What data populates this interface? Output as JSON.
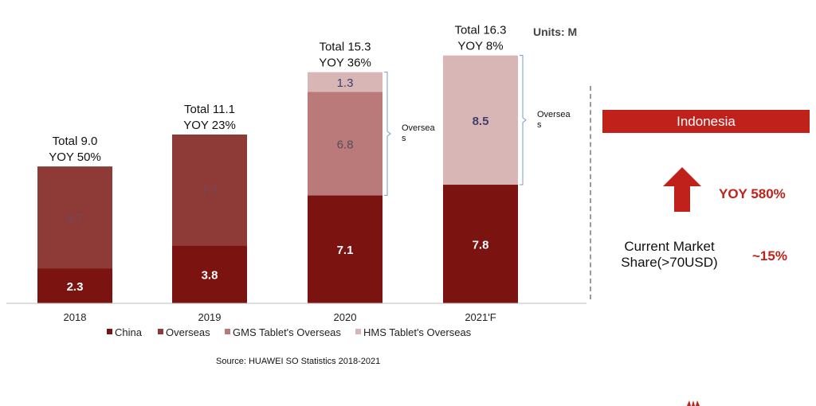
{
  "units": "Units: M",
  "source": "Source: HUAWEI SO Statistics 2018-2021",
  "colors": {
    "china": "#7b1410",
    "overseas": "#8e3a37",
    "gms": "#b97a79",
    "hms": "#d8b6b6",
    "accent": "#c0221b"
  },
  "chart_data": {
    "type": "bar",
    "stacked": true,
    "categories": [
      "2018",
      "2019",
      "2020",
      "2021'F"
    ],
    "series": [
      {
        "name": "China",
        "values": [
          2.3,
          3.8,
          7.1,
          7.8
        ],
        "labels": [
          "2.3",
          "3.8",
          "7.1",
          "7.8"
        ]
      },
      {
        "name": "Overseas",
        "values": [
          6.7,
          7.3,
          0,
          0
        ],
        "labels": [
          "6.7",
          "7.3",
          "",
          ""
        ]
      },
      {
        "name": "GMS Tablet's Overseas",
        "values": [
          0,
          0,
          6.8,
          0
        ],
        "labels": [
          "",
          "",
          "6.8",
          ""
        ]
      },
      {
        "name": "HMS Tablet's   Overseas",
        "values": [
          0,
          0,
          1.3,
          8.5
        ],
        "labels": [
          "",
          "",
          "1.3",
          "8.5"
        ]
      }
    ],
    "totals": [
      "Total 9.0",
      "Total 11.1",
      "Total 15.3",
      "Total 16.3"
    ],
    "yoy": [
      "YOY 50%",
      "YOY 23%",
      "YOY 36%",
      "YOY 8%"
    ],
    "bracket_label": "Overseas",
    "ylim": [
      0,
      18
    ],
    "legend_position": "bottom"
  },
  "side_panel": {
    "region": "Indonesia",
    "yoy": "YOY 580%",
    "share_label_line1": "Current Market",
    "share_label_line2": "Share(>70USD)",
    "share_value": "~15%"
  }
}
